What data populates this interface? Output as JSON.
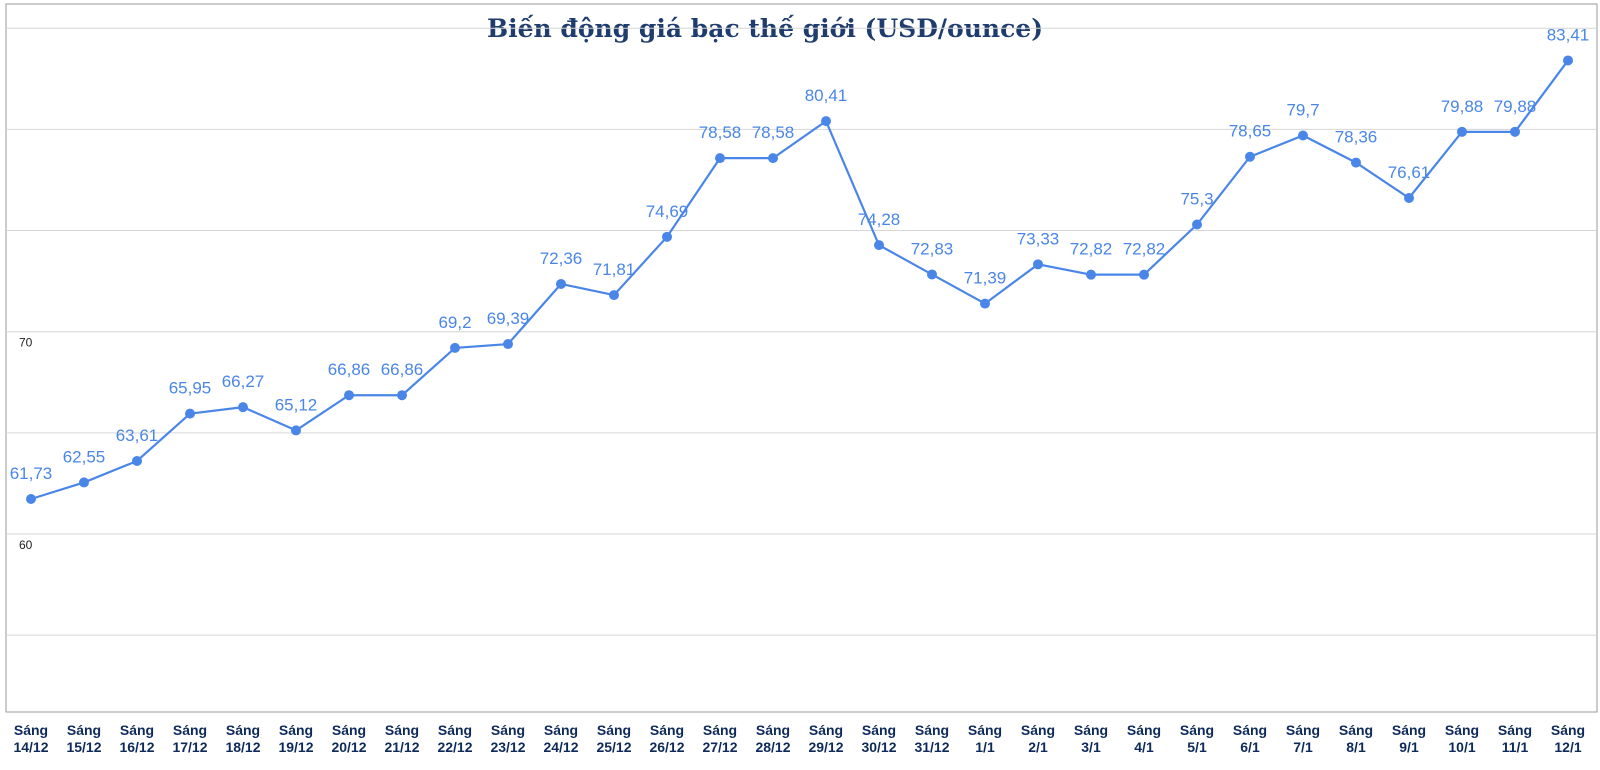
{
  "chart_data": {
    "type": "line",
    "title": "Biến động giá bạc thế giới (USD/ounce)",
    "xlabel": "",
    "ylabel": "",
    "ylim": [
      51.2,
      86.2
    ],
    "y_ticks": [
      60,
      70
    ],
    "grid": true,
    "categories": [
      "Sáng 14/12",
      "Sáng 15/12",
      "Sáng 16/12",
      "Sáng 17/12",
      "Sáng 18/12",
      "Sáng 19/12",
      "Sáng 20/12",
      "Sáng 21/12",
      "Sáng 22/12",
      "Sáng 23/12",
      "Sáng 24/12",
      "Sáng 25/12",
      "Sáng 26/12",
      "Sáng 27/12",
      "Sáng 28/12",
      "Sáng 29/12",
      "Sáng 30/12",
      "Sáng 31/12",
      "Sáng 1/1",
      "Sáng 2/1",
      "Sáng 3/1",
      "Sáng 4/1",
      "Sáng 5/1",
      "Sáng 6/1",
      "Sáng 7/1",
      "Sáng 8/1",
      "Sáng 9/1",
      "Sáng 10/1",
      "Sáng 11/1",
      "Sáng 12/1"
    ],
    "series": [
      {
        "values": [
          61.73,
          62.55,
          63.61,
          65.95,
          66.27,
          65.12,
          66.86,
          66.86,
          69.2,
          69.39,
          72.36,
          71.81,
          74.69,
          78.58,
          78.58,
          80.41,
          74.28,
          72.83,
          71.39,
          73.33,
          72.82,
          72.82,
          75.3,
          78.65,
          79.7,
          78.36,
          76.61,
          79.88,
          79.88,
          83.41
        ],
        "labels": [
          "61,73",
          "62,55",
          "63,61",
          "65,95",
          "66,27",
          "65,12",
          "66,86",
          "66,86",
          "69,2",
          "69,39",
          "72,36",
          "71,81",
          "74,69",
          "78,58",
          "78,58",
          "80,41",
          "74,28",
          "72,83",
          "71,39",
          "73,33",
          "72,82",
          "72,82",
          "75,3",
          "78,65",
          "79,7",
          "78,36",
          "76,61",
          "79,88",
          "79,88",
          "83,41"
        ]
      }
    ],
    "colors": {
      "line": "#4a86e8",
      "title": "#1f3c6e",
      "x_ticks": "#0e2a5a",
      "grid": "#d6d6d6"
    }
  }
}
